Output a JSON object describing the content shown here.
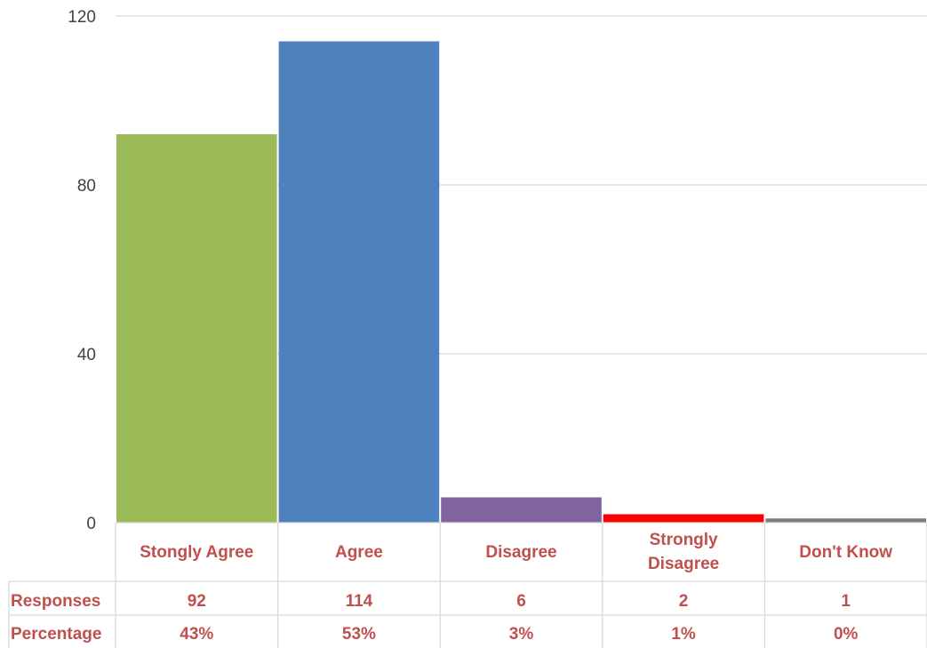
{
  "chart_data": {
    "type": "bar",
    "categories": [
      "Stongly Agree",
      "Agree",
      "Disagree",
      "Strongly Disagree",
      "Don't Know"
    ],
    "values": [
      92,
      114,
      6,
      2,
      1
    ],
    "colors": [
      "#9bbb59",
      "#4f81bd",
      "#8064a2",
      "#ff0000",
      "#7f7f7f"
    ],
    "ylim": [
      0,
      120
    ],
    "yticks": [
      "0",
      "40",
      "80",
      "120"
    ],
    "grid": true,
    "title": "",
    "xlabel": "",
    "ylabel": "",
    "table": {
      "rows": [
        {
          "label": "Responses",
          "cells": [
            "92",
            "114",
            "6",
            "2",
            "1"
          ]
        },
        {
          "label": "Percentage",
          "cells": [
            "43%",
            "53%",
            "3%",
            "1%",
            "0%"
          ]
        }
      ]
    }
  }
}
